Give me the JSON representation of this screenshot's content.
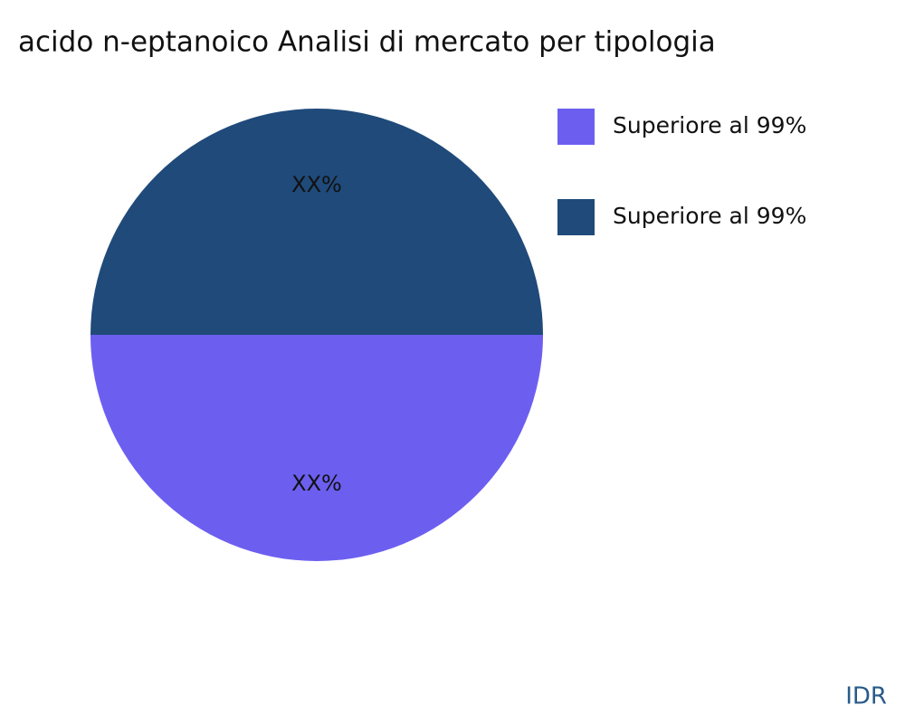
{
  "chart_data": {
    "type": "pie",
    "title": "acido n-eptanoico Analisi di mercato per tipologia",
    "categories": [
      "Superiore al 99%",
      "Superiore al 99%"
    ],
    "values": [
      50,
      50
    ],
    "value_labels": [
      "XX%",
      "XX%"
    ],
    "colors": [
      "#6c5ff0",
      "#1f4a7a"
    ],
    "legend": "top-right",
    "source": "IDR"
  }
}
